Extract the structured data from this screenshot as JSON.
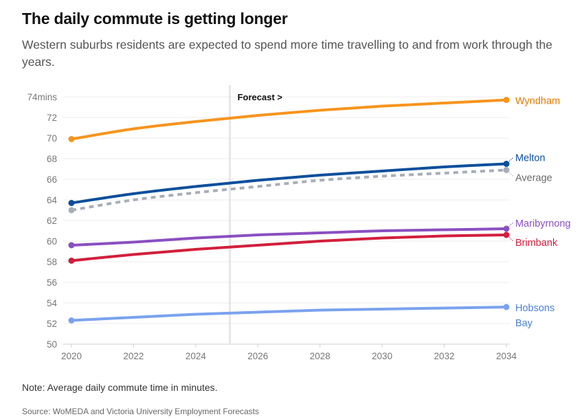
{
  "header": {
    "title": "The daily commute is getting longer",
    "subtitle": "Western suburbs residents are expected to spend more time travelling to and from work through the years."
  },
  "footer": {
    "note": "Note: Average daily commute time in minutes.",
    "source": "Source: WoMEDA and Victoria University Employment Forecasts"
  },
  "chart_data": {
    "type": "line",
    "title": "The daily commute is getting longer",
    "subtitle": "Western suburbs residents are expected to spend more time travelling to and from work through the years.",
    "xlabel": "",
    "ylabel": "",
    "xlim": [
      2020,
      2034
    ],
    "ylim": [
      50,
      74
    ],
    "x_ticks": [
      "2020",
      "2022",
      "2024",
      "2026",
      "2028",
      "2030",
      "2032",
      "2034"
    ],
    "y_ticks": [
      "50",
      "52",
      "54",
      "56",
      "58",
      "60",
      "62",
      "64",
      "66",
      "68",
      "70",
      "72",
      "74mins"
    ],
    "grid": true,
    "forecast": {
      "label": "Forecast >",
      "x": 2025.1
    },
    "series": [
      {
        "name": "Wyndham",
        "color": "#f7941d",
        "label_color": "#e07b00",
        "dashed": false,
        "x": [
          2020,
          2022,
          2024,
          2026,
          2028,
          2030,
          2032,
          2034
        ],
        "y": [
          69.9,
          70.9,
          71.6,
          72.2,
          72.7,
          73.1,
          73.4,
          73.7
        ]
      },
      {
        "name": "Melton",
        "color": "#0b4f9c",
        "label_color": "#0b4f9c",
        "dashed": false,
        "x": [
          2020,
          2022,
          2024,
          2026,
          2028,
          2030,
          2032,
          2034
        ],
        "y": [
          63.7,
          64.6,
          65.3,
          65.9,
          66.4,
          66.8,
          67.2,
          67.5
        ]
      },
      {
        "name": "Average",
        "color": "#a8adb8",
        "label_color": "#6a6a6a",
        "dashed": true,
        "x": [
          2020,
          2022,
          2024,
          2026,
          2028,
          2030,
          2032,
          2034
        ],
        "y": [
          63.0,
          64.0,
          64.7,
          65.3,
          65.9,
          66.3,
          66.6,
          66.9
        ]
      },
      {
        "name": "Maribyrnong",
        "color": "#8a4fc0",
        "label_color": "#8a4fc0",
        "dashed": false,
        "x": [
          2020,
          2022,
          2024,
          2026,
          2028,
          2030,
          2032,
          2034
        ],
        "y": [
          59.6,
          59.9,
          60.3,
          60.6,
          60.8,
          61.0,
          61.1,
          61.2
        ]
      },
      {
        "name": "Brimbank",
        "color": "#d21f3c",
        "label_color": "#d21f3c",
        "dashed": false,
        "x": [
          2020,
          2022,
          2024,
          2026,
          2028,
          2030,
          2032,
          2034
        ],
        "y": [
          58.1,
          58.7,
          59.2,
          59.6,
          60.0,
          60.3,
          60.5,
          60.6
        ]
      },
      {
        "name": "Hobsons Bay",
        "color": "#7aa2ee",
        "label_color": "#4a7fd6",
        "dashed": false,
        "x": [
          2020,
          2022,
          2024,
          2026,
          2028,
          2030,
          2032,
          2034
        ],
        "y": [
          52.3,
          52.6,
          52.9,
          53.1,
          53.3,
          53.4,
          53.5,
          53.6
        ]
      }
    ]
  }
}
